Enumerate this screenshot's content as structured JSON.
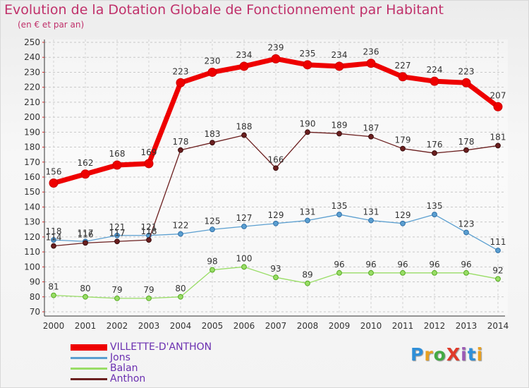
{
  "title": "Evolution de la Dotation Globale de Fonctionnement par Habitant",
  "subtitle": "(en € et par an)",
  "logo": {
    "text": "ProXiti",
    "colors": [
      "#2f8fd8",
      "#e8a020",
      "#44aa44",
      "#e03a2a",
      "#9b59b6",
      "#2f8fd8",
      "#e8a020"
    ]
  },
  "chart_data": {
    "type": "line",
    "x": [
      2000,
      2001,
      2002,
      2003,
      2004,
      2005,
      2006,
      2007,
      2008,
      2009,
      2010,
      2011,
      2012,
      2013,
      2014
    ],
    "ylim": [
      70,
      250
    ],
    "yticks": [
      70,
      80,
      90,
      100,
      110,
      120,
      130,
      140,
      150,
      160,
      170,
      180,
      190,
      200,
      210,
      220,
      230,
      240,
      250
    ],
    "grid": true,
    "legend_position": "bottom-left",
    "series": [
      {
        "name": "VILLETTE-D'ANTHON",
        "color": "#ee0000",
        "width": 7,
        "values": [
          156,
          162,
          168,
          169,
          223,
          230,
          234,
          239,
          235,
          234,
          236,
          227,
          224,
          223,
          207
        ],
        "labels": [
          "156",
          "162",
          "168",
          "169",
          "223",
          "230",
          "234",
          "239",
          "235",
          "234",
          "236",
          "227",
          "224",
          "223",
          "207"
        ]
      },
      {
        "name": "Jons",
        "color": "#5b9fd0",
        "width": 1.3,
        "values": [
          118,
          117,
          121,
          121,
          122,
          125,
          127,
          129,
          131,
          135,
          131,
          129,
          135,
          123,
          111
        ],
        "labels": [
          "118",
          "117",
          "121",
          "121",
          "122",
          "125",
          "127",
          "129",
          "131",
          "135",
          "131",
          "129",
          "135",
          "123",
          "111"
        ]
      },
      {
        "name": "Balan",
        "color": "#99dd66",
        "width": 1.3,
        "values": [
          81,
          80,
          79,
          79,
          80,
          98,
          100,
          93,
          89,
          96,
          96,
          96,
          96,
          96,
          92
        ],
        "labels": [
          "81",
          "80",
          "79",
          "79",
          "80",
          "98",
          "100",
          "93",
          "89",
          "96",
          "96",
          "96",
          "96",
          "96",
          "92"
        ]
      },
      {
        "name": "Anthon",
        "color": "#6b1f1f",
        "width": 1.3,
        "values": [
          114,
          116,
          117,
          118,
          178,
          183,
          188,
          166,
          190,
          189,
          187,
          179,
          176,
          178,
          181
        ],
        "labels": [
          "114",
          "116",
          "117",
          "118",
          "178",
          "183",
          "188",
          "166",
          "190",
          "189",
          "187",
          "179",
          "176",
          "178",
          "181"
        ]
      }
    ]
  }
}
